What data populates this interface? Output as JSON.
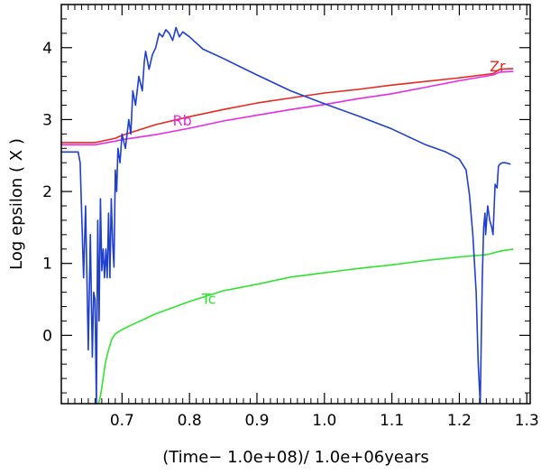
{
  "chart_data": {
    "type": "line",
    "xlabel": "(Time− 1.0e+08)/ 1.0e+06years",
    "ylabel": "Log epsilon ( X )",
    "xlim": [
      0.61,
      1.305
    ],
    "ylim": [
      -0.95,
      4.6
    ],
    "grid": false,
    "legend": "none",
    "x_ticks": [
      {
        "value": 0.7,
        "label": "0.7"
      },
      {
        "value": 0.8,
        "label": "0.8"
      },
      {
        "value": 0.9,
        "label": "0.9"
      },
      {
        "value": 1.0,
        "label": "1.0"
      },
      {
        "value": 1.1,
        "label": "1.1"
      },
      {
        "value": 1.2,
        "label": "1.2"
      },
      {
        "value": 1.3,
        "label": "1.3"
      }
    ],
    "y_ticks": [
      {
        "value": 0,
        "label": "0"
      },
      {
        "value": 1,
        "label": "1"
      },
      {
        "value": 2,
        "label": "2"
      },
      {
        "value": 3,
        "label": "3"
      },
      {
        "value": 4,
        "label": "4"
      }
    ],
    "series": [
      {
        "name": "Zr",
        "color": "#e8281f",
        "label_at": [
          1.245,
          3.67
        ],
        "x": [
          0.61,
          0.66,
          0.69,
          0.7,
          0.75,
          0.8,
          0.85,
          0.9,
          0.95,
          1.0,
          1.05,
          1.1,
          1.15,
          1.2,
          1.25,
          1.26,
          1.28
        ],
        "y": [
          2.68,
          2.68,
          2.74,
          2.78,
          2.93,
          3.04,
          3.14,
          3.23,
          3.3,
          3.37,
          3.42,
          3.48,
          3.53,
          3.58,
          3.64,
          3.7,
          3.71
        ]
      },
      {
        "name": "Rb",
        "color": "#e62ce6",
        "label_at": [
          0.775,
          2.92
        ],
        "x": [
          0.61,
          0.66,
          0.69,
          0.7,
          0.75,
          0.8,
          0.85,
          0.9,
          0.95,
          1.0,
          1.05,
          1.1,
          1.15,
          1.2,
          1.25,
          1.26,
          1.28
        ],
        "y": [
          2.65,
          2.65,
          2.7,
          2.72,
          2.79,
          2.88,
          2.98,
          3.06,
          3.14,
          3.21,
          3.29,
          3.36,
          3.45,
          3.54,
          3.62,
          3.66,
          3.67
        ]
      },
      {
        "name": "Tc",
        "color": "#2fe42f",
        "label_at": [
          0.818,
          0.44
        ],
        "x": [
          0.665,
          0.668,
          0.672,
          0.675,
          0.68,
          0.685,
          0.69,
          0.7,
          0.72,
          0.75,
          0.8,
          0.85,
          0.9,
          0.95,
          1.0,
          1.05,
          1.1,
          1.15,
          1.2,
          1.24,
          1.26,
          1.28
        ],
        "y": [
          -0.95,
          -0.85,
          -0.6,
          -0.4,
          -0.2,
          -0.05,
          0.02,
          0.08,
          0.17,
          0.3,
          0.47,
          0.62,
          0.71,
          0.81,
          0.87,
          0.93,
          0.98,
          1.04,
          1.09,
          1.12,
          1.17,
          1.2
        ]
      },
      {
        "name": "",
        "color": "#1f3fcc",
        "x": [
          0.61,
          0.635,
          0.638,
          0.643,
          0.646,
          0.648,
          0.65,
          0.653,
          0.656,
          0.658,
          0.66,
          0.662,
          0.664,
          0.666,
          0.668,
          0.67,
          0.672,
          0.674,
          0.676,
          0.678,
          0.68,
          0.682,
          0.684,
          0.686,
          0.688,
          0.69,
          0.692,
          0.694,
          0.697,
          0.7,
          0.705,
          0.71,
          0.713,
          0.716,
          0.72,
          0.725,
          0.73,
          0.733,
          0.735,
          0.74,
          0.745,
          0.75,
          0.755,
          0.76,
          0.765,
          0.77,
          0.775,
          0.78,
          0.785,
          0.79,
          0.8,
          0.82,
          0.85,
          0.9,
          0.95,
          1.0,
          1.05,
          1.1,
          1.15,
          1.18,
          1.2,
          1.21,
          1.215,
          1.22,
          1.225,
          1.228,
          1.231,
          1.234,
          1.236,
          1.238,
          1.239,
          1.242,
          1.245,
          1.248,
          1.25,
          1.253,
          1.256,
          1.258,
          1.26,
          1.264,
          1.268,
          1.272,
          1.276
        ],
        "y": [
          2.55,
          2.55,
          2.4,
          0.8,
          1.8,
          0.8,
          -0.2,
          1.4,
          -0.3,
          0.6,
          0.5,
          -0.95,
          1.6,
          0.2,
          1.9,
          0.9,
          1.2,
          0.8,
          1.2,
          0.8,
          1.7,
          0.8,
          1.9,
          1.3,
          0.95,
          2.3,
          2.0,
          2.6,
          2.4,
          2.8,
          2.6,
          3.0,
          2.8,
          3.4,
          3.2,
          3.6,
          3.4,
          3.8,
          3.95,
          3.7,
          3.9,
          4.0,
          4.2,
          4.15,
          4.25,
          4.2,
          4.1,
          4.28,
          4.15,
          4.22,
          4.15,
          3.98,
          3.85,
          3.62,
          3.4,
          3.22,
          3.05,
          2.87,
          2.65,
          2.55,
          2.45,
          2.3,
          1.95,
          1.4,
          0.6,
          -0.4,
          -0.95,
          0.8,
          1.5,
          1.7,
          1.4,
          1.8,
          1.6,
          1.5,
          1.4,
          2.1,
          2.05,
          2.35,
          2.38,
          2.4,
          2.4,
          2.39,
          2.38
        ]
      }
    ]
  }
}
